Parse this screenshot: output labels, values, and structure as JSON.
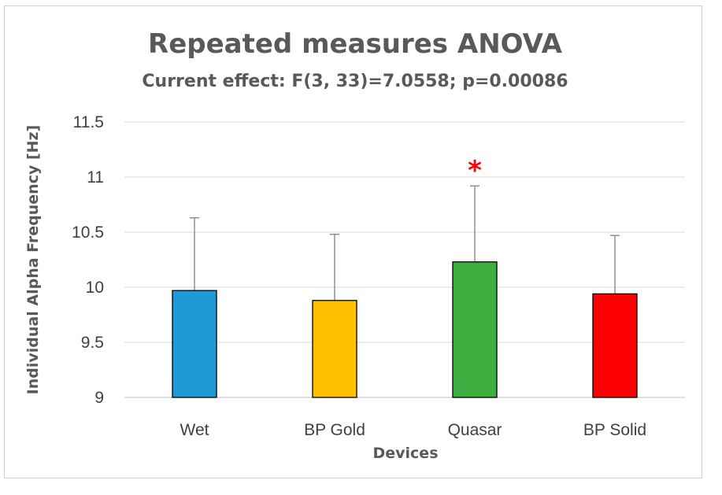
{
  "chart_data": {
    "type": "bar",
    "title": "Repeated measures ANOVA",
    "subtitle": "Current effect: F(3, 33)=7.0558; p=0.00086",
    "xlabel": "Devices",
    "ylabel": "Individual Alpha Frequency [Hz]",
    "ylim": [
      9,
      11.5
    ],
    "yticks": [
      "9",
      "9.5",
      "10",
      "10.5",
      "11",
      "11.5"
    ],
    "grid": true,
    "categories": [
      "Wet",
      "BP Gold",
      "Quasar",
      "BP Solid"
    ],
    "values": [
      9.97,
      9.88,
      10.23,
      9.94
    ],
    "error_upper": [
      10.63,
      10.48,
      10.92,
      10.47
    ],
    "colors": [
      "#1f9ad6",
      "#ffc000",
      "#3cae3f",
      "#ff0000"
    ],
    "annotations": [
      {
        "category": "Quasar",
        "text": "*",
        "color": "#ff0000"
      }
    ]
  }
}
